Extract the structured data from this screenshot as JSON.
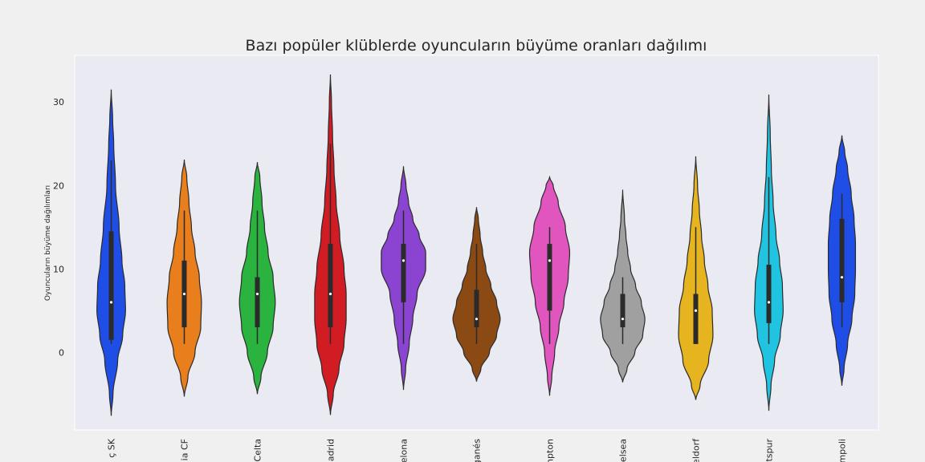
{
  "chart_data": {
    "type": "violin",
    "title": "Bazı popüler klüblerde oyuncuların büyüme oranları dağılımı",
    "xlabel": "",
    "ylabel": "Oyuncuların büyüme dağılımları",
    "ylim": [
      -9.3,
      35.6
    ],
    "yticks": [
      0,
      10,
      20,
      30
    ],
    "grid": false,
    "categories": [
      "ç SK",
      "ia CF",
      "Celta",
      "Madrid",
      "elona",
      "ganés",
      "npton",
      "elsea",
      "eldorf",
      "tspur",
      "mpoli"
    ],
    "series": [
      {
        "category": "ç SK",
        "color": "#1f4ee6",
        "min": 1,
        "q1": 1.5,
        "median": 6,
        "q3": 14.5,
        "max": 23,
        "kde_min": -7.6,
        "kde_max": 31.5,
        "width_profile": [
          [
            -7.6,
            0.0
          ],
          [
            -5,
            0.05
          ],
          [
            -1,
            0.18
          ],
          [
            2,
            0.32
          ],
          [
            5,
            0.4
          ],
          [
            8,
            0.38
          ],
          [
            11,
            0.3
          ],
          [
            15,
            0.22
          ],
          [
            20,
            0.12
          ],
          [
            25,
            0.07
          ],
          [
            28,
            0.04
          ],
          [
            31.5,
            0.0
          ]
        ]
      },
      {
        "category": "ia CF",
        "color": "#e87e1c",
        "min": 1,
        "q1": 3,
        "median": 7,
        "q3": 11,
        "max": 17,
        "kde_min": -5.3,
        "kde_max": 23.1,
        "width_profile": [
          [
            -5.3,
            0.0
          ],
          [
            -3,
            0.1
          ],
          [
            0,
            0.3
          ],
          [
            3,
            0.46
          ],
          [
            6,
            0.48
          ],
          [
            9,
            0.42
          ],
          [
            12,
            0.3
          ],
          [
            15,
            0.2
          ],
          [
            18,
            0.13
          ],
          [
            21,
            0.07
          ],
          [
            23.1,
            0.0
          ]
        ]
      },
      {
        "category": "Celta",
        "color": "#2bb33f",
        "min": 1,
        "q1": 3,
        "median": 7,
        "q3": 9,
        "max": 17,
        "kde_min": -5,
        "kde_max": 22.8,
        "width_profile": [
          [
            -5,
            0.0
          ],
          [
            -3,
            0.1
          ],
          [
            0,
            0.28
          ],
          [
            3,
            0.44
          ],
          [
            6,
            0.5
          ],
          [
            9,
            0.44
          ],
          [
            12,
            0.3
          ],
          [
            15,
            0.2
          ],
          [
            18,
            0.13
          ],
          [
            21,
            0.07
          ],
          [
            22.8,
            0.0
          ]
        ]
      },
      {
        "category": "Madrid",
        "color": "#d21c24",
        "min": 1,
        "q1": 3,
        "median": 7,
        "q3": 13,
        "max": 25,
        "kde_min": -7.5,
        "kde_max": 33.3,
        "width_profile": [
          [
            -7.5,
            0.0
          ],
          [
            -5,
            0.08
          ],
          [
            -2,
            0.24
          ],
          [
            1,
            0.38
          ],
          [
            4,
            0.44
          ],
          [
            7,
            0.44
          ],
          [
            10,
            0.38
          ],
          [
            14,
            0.26
          ],
          [
            18,
            0.16
          ],
          [
            22,
            0.1
          ],
          [
            26,
            0.06
          ],
          [
            30,
            0.03
          ],
          [
            33.3,
            0.0
          ]
        ]
      },
      {
        "category": "elona",
        "color": "#8b44d2",
        "min": 1,
        "q1": 6,
        "median": 11,
        "q3": 13,
        "max": 17,
        "kde_min": -4.5,
        "kde_max": 22.3,
        "width_profile": [
          [
            -4.5,
            0.0
          ],
          [
            -2,
            0.06
          ],
          [
            1,
            0.16
          ],
          [
            4,
            0.26
          ],
          [
            7,
            0.38
          ],
          [
            10,
            0.62
          ],
          [
            12,
            0.62
          ],
          [
            14,
            0.44
          ],
          [
            16,
            0.26
          ],
          [
            18,
            0.14
          ],
          [
            20,
            0.07
          ],
          [
            22.3,
            0.0
          ]
        ]
      },
      {
        "category": "ganés",
        "color": "#8b4a14",
        "min": 1,
        "q1": 3,
        "median": 4,
        "q3": 7.5,
        "max": 13,
        "kde_min": -3.5,
        "kde_max": 17.4,
        "width_profile": [
          [
            -3.5,
            0.0
          ],
          [
            -2,
            0.12
          ],
          [
            0,
            0.36
          ],
          [
            2,
            0.56
          ],
          [
            4,
            0.66
          ],
          [
            6,
            0.56
          ],
          [
            8,
            0.4
          ],
          [
            10,
            0.26
          ],
          [
            12,
            0.17
          ],
          [
            14,
            0.1
          ],
          [
            16,
            0.05
          ],
          [
            17.4,
            0.0
          ]
        ]
      },
      {
        "category": "npton",
        "color": "#e055be",
        "min": 1,
        "q1": 5,
        "median": 11,
        "q3": 13,
        "max": 15,
        "kde_min": -5.2,
        "kde_max": 21,
        "width_profile": [
          [
            -5.2,
            0.0
          ],
          [
            -3,
            0.06
          ],
          [
            0,
            0.14
          ],
          [
            3,
            0.26
          ],
          [
            6,
            0.4
          ],
          [
            9,
            0.52
          ],
          [
            12,
            0.56
          ],
          [
            15,
            0.44
          ],
          [
            18,
            0.24
          ],
          [
            20,
            0.1
          ],
          [
            21,
            0.0
          ]
        ]
      },
      {
        "category": "elsea",
        "color": "#a0a0a0",
        "min": 1,
        "q1": 3,
        "median": 4,
        "q3": 7,
        "max": 9,
        "kde_min": -3.6,
        "kde_max": 19.5,
        "width_profile": [
          [
            -3.6,
            0.0
          ],
          [
            -2,
            0.12
          ],
          [
            0,
            0.34
          ],
          [
            2,
            0.56
          ],
          [
            4,
            0.62
          ],
          [
            6,
            0.52
          ],
          [
            8,
            0.36
          ],
          [
            10,
            0.22
          ],
          [
            12,
            0.14
          ],
          [
            14,
            0.09
          ],
          [
            16,
            0.05
          ],
          [
            19.5,
            0.0
          ]
        ]
      },
      {
        "category": "eldorf",
        "color": "#e6b41e",
        "min": 1,
        "q1": 1,
        "median": 5,
        "q3": 7,
        "max": 15,
        "kde_min": -5.7,
        "kde_max": 23.5,
        "width_profile": [
          [
            -5.7,
            0.0
          ],
          [
            -4,
            0.12
          ],
          [
            -1,
            0.36
          ],
          [
            2,
            0.48
          ],
          [
            5,
            0.46
          ],
          [
            8,
            0.34
          ],
          [
            11,
            0.24
          ],
          [
            14,
            0.16
          ],
          [
            17,
            0.1
          ],
          [
            20,
            0.05
          ],
          [
            23.5,
            0.0
          ]
        ]
      },
      {
        "category": "tspur",
        "color": "#20c4e0",
        "min": 1,
        "q1": 3.5,
        "median": 6,
        "q3": 10.5,
        "max": 21,
        "kde_min": -7,
        "kde_max": 30.9,
        "width_profile": [
          [
            -7,
            0.0
          ],
          [
            -4,
            0.06
          ],
          [
            -1,
            0.16
          ],
          [
            2,
            0.32
          ],
          [
            5,
            0.4
          ],
          [
            8,
            0.38
          ],
          [
            11,
            0.3
          ],
          [
            14,
            0.2
          ],
          [
            18,
            0.12
          ],
          [
            22,
            0.07
          ],
          [
            26,
            0.04
          ],
          [
            30.9,
            0.0
          ]
        ]
      },
      {
        "category": "mpoli",
        "color": "#1f4ee6",
        "min": 3,
        "q1": 6,
        "median": 9,
        "q3": 16,
        "max": 19,
        "kde_min": -4,
        "kde_max": 26,
        "width_profile": [
          [
            -4,
            0.0
          ],
          [
            -2,
            0.06
          ],
          [
            1,
            0.16
          ],
          [
            4,
            0.28
          ],
          [
            7,
            0.36
          ],
          [
            10,
            0.38
          ],
          [
            13,
            0.38
          ],
          [
            16,
            0.34
          ],
          [
            19,
            0.26
          ],
          [
            22,
            0.16
          ],
          [
            24,
            0.08
          ],
          [
            26,
            0.0
          ]
        ]
      }
    ]
  }
}
